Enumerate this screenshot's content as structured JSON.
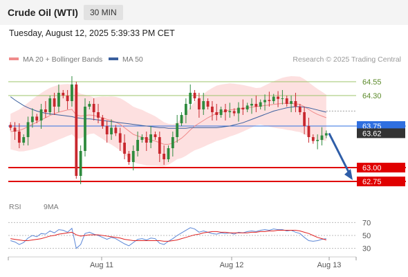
{
  "header": {
    "title": "Crude Oil (WTI)",
    "timeframe": "30 MIN"
  },
  "datetime": "Tuesday, August 12, 2025 5:39:33 PM CET",
  "legend": {
    "ma20": {
      "label": "MA 20 + Bollinger Bands",
      "color": "#f08b8b"
    },
    "ma50": {
      "label": "MA 50",
      "color": "#3a5f9e"
    }
  },
  "credit": "Research © 2025 Trading Central",
  "rsi_legend": {
    "rsi": {
      "label": "RSI",
      "color": "#5b86d6"
    },
    "ma9": {
      "label": "9MA",
      "color": "#e02020"
    }
  },
  "chart_data": [
    {
      "type": "candlestick",
      "ylim": [
        62.5,
        64.8
      ],
      "x_ticks": [
        "Aug 11",
        "Aug 12",
        "Aug 13"
      ],
      "levels": [
        {
          "label": "64.55",
          "value": 64.55,
          "style": "resistance",
          "color": "#9ec46a"
        },
        {
          "label": "64.30",
          "value": 64.3,
          "style": "resistance",
          "color": "#9ec46a"
        },
        {
          "label": "63.75",
          "value": 63.75,
          "style": "pivot",
          "color": "#2f6fe0"
        },
        {
          "label": "63.00",
          "value": 63.0,
          "style": "support",
          "color": "#e00000"
        },
        {
          "label": "62.75",
          "value": 62.75,
          "style": "support",
          "color": "#e00000"
        }
      ],
      "last_price": {
        "label": "63.62",
        "value": 63.62
      },
      "forecast": {
        "from": 63.62,
        "to": 62.75
      },
      "series_close": [
        63.72,
        63.65,
        63.45,
        63.55,
        63.82,
        63.92,
        63.85,
        64.05,
        64.0,
        64.25,
        64.1,
        64.35,
        64.3,
        64.2,
        64.5,
        62.85,
        63.3,
        64.1,
        64.15,
        64.0,
        63.9,
        63.75,
        63.6,
        63.72,
        63.62,
        63.45,
        63.25,
        63.1,
        63.3,
        63.5,
        63.55,
        63.45,
        63.6,
        63.55,
        63.25,
        63.15,
        63.35,
        63.55,
        63.8,
        63.95,
        64.15,
        64.35,
        64.25,
        64.05,
        64.2,
        64.1,
        64.0,
        63.95,
        64.05,
        64.0,
        64.02,
        63.98,
        64.08,
        64.05,
        64.12,
        64.15,
        64.1,
        64.18,
        64.22,
        64.2,
        64.28,
        64.24,
        64.25,
        64.15,
        64.2,
        64.1,
        64.0,
        63.75,
        63.55,
        63.48,
        63.5,
        63.58,
        63.62
      ],
      "ma20": [
        63.65,
        63.66,
        63.67,
        63.7,
        63.74,
        63.78,
        63.82,
        63.86,
        63.9,
        63.94,
        63.97,
        64.0,
        64.02,
        64.04,
        64.05,
        63.95,
        63.93,
        63.94,
        63.95,
        63.94,
        63.92,
        63.9,
        63.87,
        63.85,
        63.82,
        63.78,
        63.72,
        63.66,
        63.6,
        63.57,
        63.55,
        63.52,
        63.5,
        63.48,
        63.45,
        63.42,
        63.42,
        63.44,
        63.48,
        63.53,
        63.6,
        63.68,
        63.75,
        63.8,
        63.85,
        63.9,
        63.94,
        63.98,
        64.0,
        64.02,
        64.04,
        64.05,
        64.06,
        64.07,
        64.08,
        64.09,
        64.1,
        64.11,
        64.12,
        64.13,
        64.14,
        64.15,
        64.16,
        64.16,
        64.16,
        64.15,
        64.14,
        64.1,
        64.05,
        64.0,
        63.96,
        63.93,
        63.9
      ],
      "ma50": [
        64.28,
        64.22,
        64.17,
        64.12,
        64.08,
        64.05,
        64.02,
        64.0,
        63.98,
        63.97,
        63.96,
        63.95,
        63.94,
        63.93,
        63.92,
        63.9,
        63.89,
        63.88,
        63.88,
        63.87,
        63.86,
        63.85,
        63.84,
        63.83,
        63.82,
        63.81,
        63.8,
        63.79,
        63.78,
        63.77,
        63.76,
        63.75,
        63.74,
        63.73,
        63.72,
        63.72,
        63.71,
        63.71,
        63.71,
        63.71,
        63.71,
        63.72,
        63.72,
        63.72,
        63.72,
        63.72,
        63.72,
        63.72,
        63.73,
        63.74,
        63.75,
        63.77,
        63.79,
        63.81,
        63.84,
        63.87,
        63.9,
        63.93,
        63.96,
        63.99,
        64.02,
        64.04,
        64.06,
        64.08,
        64.09,
        64.1,
        64.1,
        64.09,
        64.08,
        64.06,
        64.04,
        64.02,
        64.0
      ]
    },
    {
      "type": "line",
      "ylim": [
        20,
        80
      ],
      "y_ticks": [
        70,
        50,
        30
      ],
      "series": [
        {
          "name": "RSI",
          "values": [
            42,
            40,
            36,
            39,
            46,
            50,
            48,
            53,
            52,
            57,
            54,
            59,
            58,
            55,
            61,
            30,
            36,
            53,
            55,
            52,
            50,
            47,
            44,
            47,
            45,
            41,
            37,
            34,
            39,
            44,
            45,
            43,
            46,
            45,
            38,
            36,
            41,
            45,
            50,
            54,
            58,
            62,
            60,
            55,
            57,
            55,
            53,
            52,
            54,
            53,
            54,
            52,
            55,
            54,
            56,
            57,
            56,
            58,
            59,
            58,
            60,
            59,
            59,
            57,
            58,
            55,
            53,
            47,
            42,
            41,
            42,
            44,
            45
          ]
        },
        {
          "name": "9MA",
          "values": [
            45,
            44,
            43,
            42,
            42,
            43,
            44,
            45,
            47,
            49,
            50,
            52,
            53,
            54,
            55,
            51,
            49,
            50,
            51,
            51,
            51,
            50,
            49,
            48,
            47,
            46,
            44,
            43,
            42,
            42,
            42,
            42,
            42,
            42,
            42,
            41,
            41,
            42,
            43,
            45,
            47,
            49,
            51,
            52,
            54,
            55,
            56,
            56,
            55,
            55,
            54,
            54,
            54,
            54,
            54,
            55,
            55,
            56,
            56,
            57,
            57,
            58,
            58,
            58,
            58,
            58,
            57,
            55,
            53,
            50,
            47,
            45,
            43
          ]
        }
      ]
    }
  ]
}
